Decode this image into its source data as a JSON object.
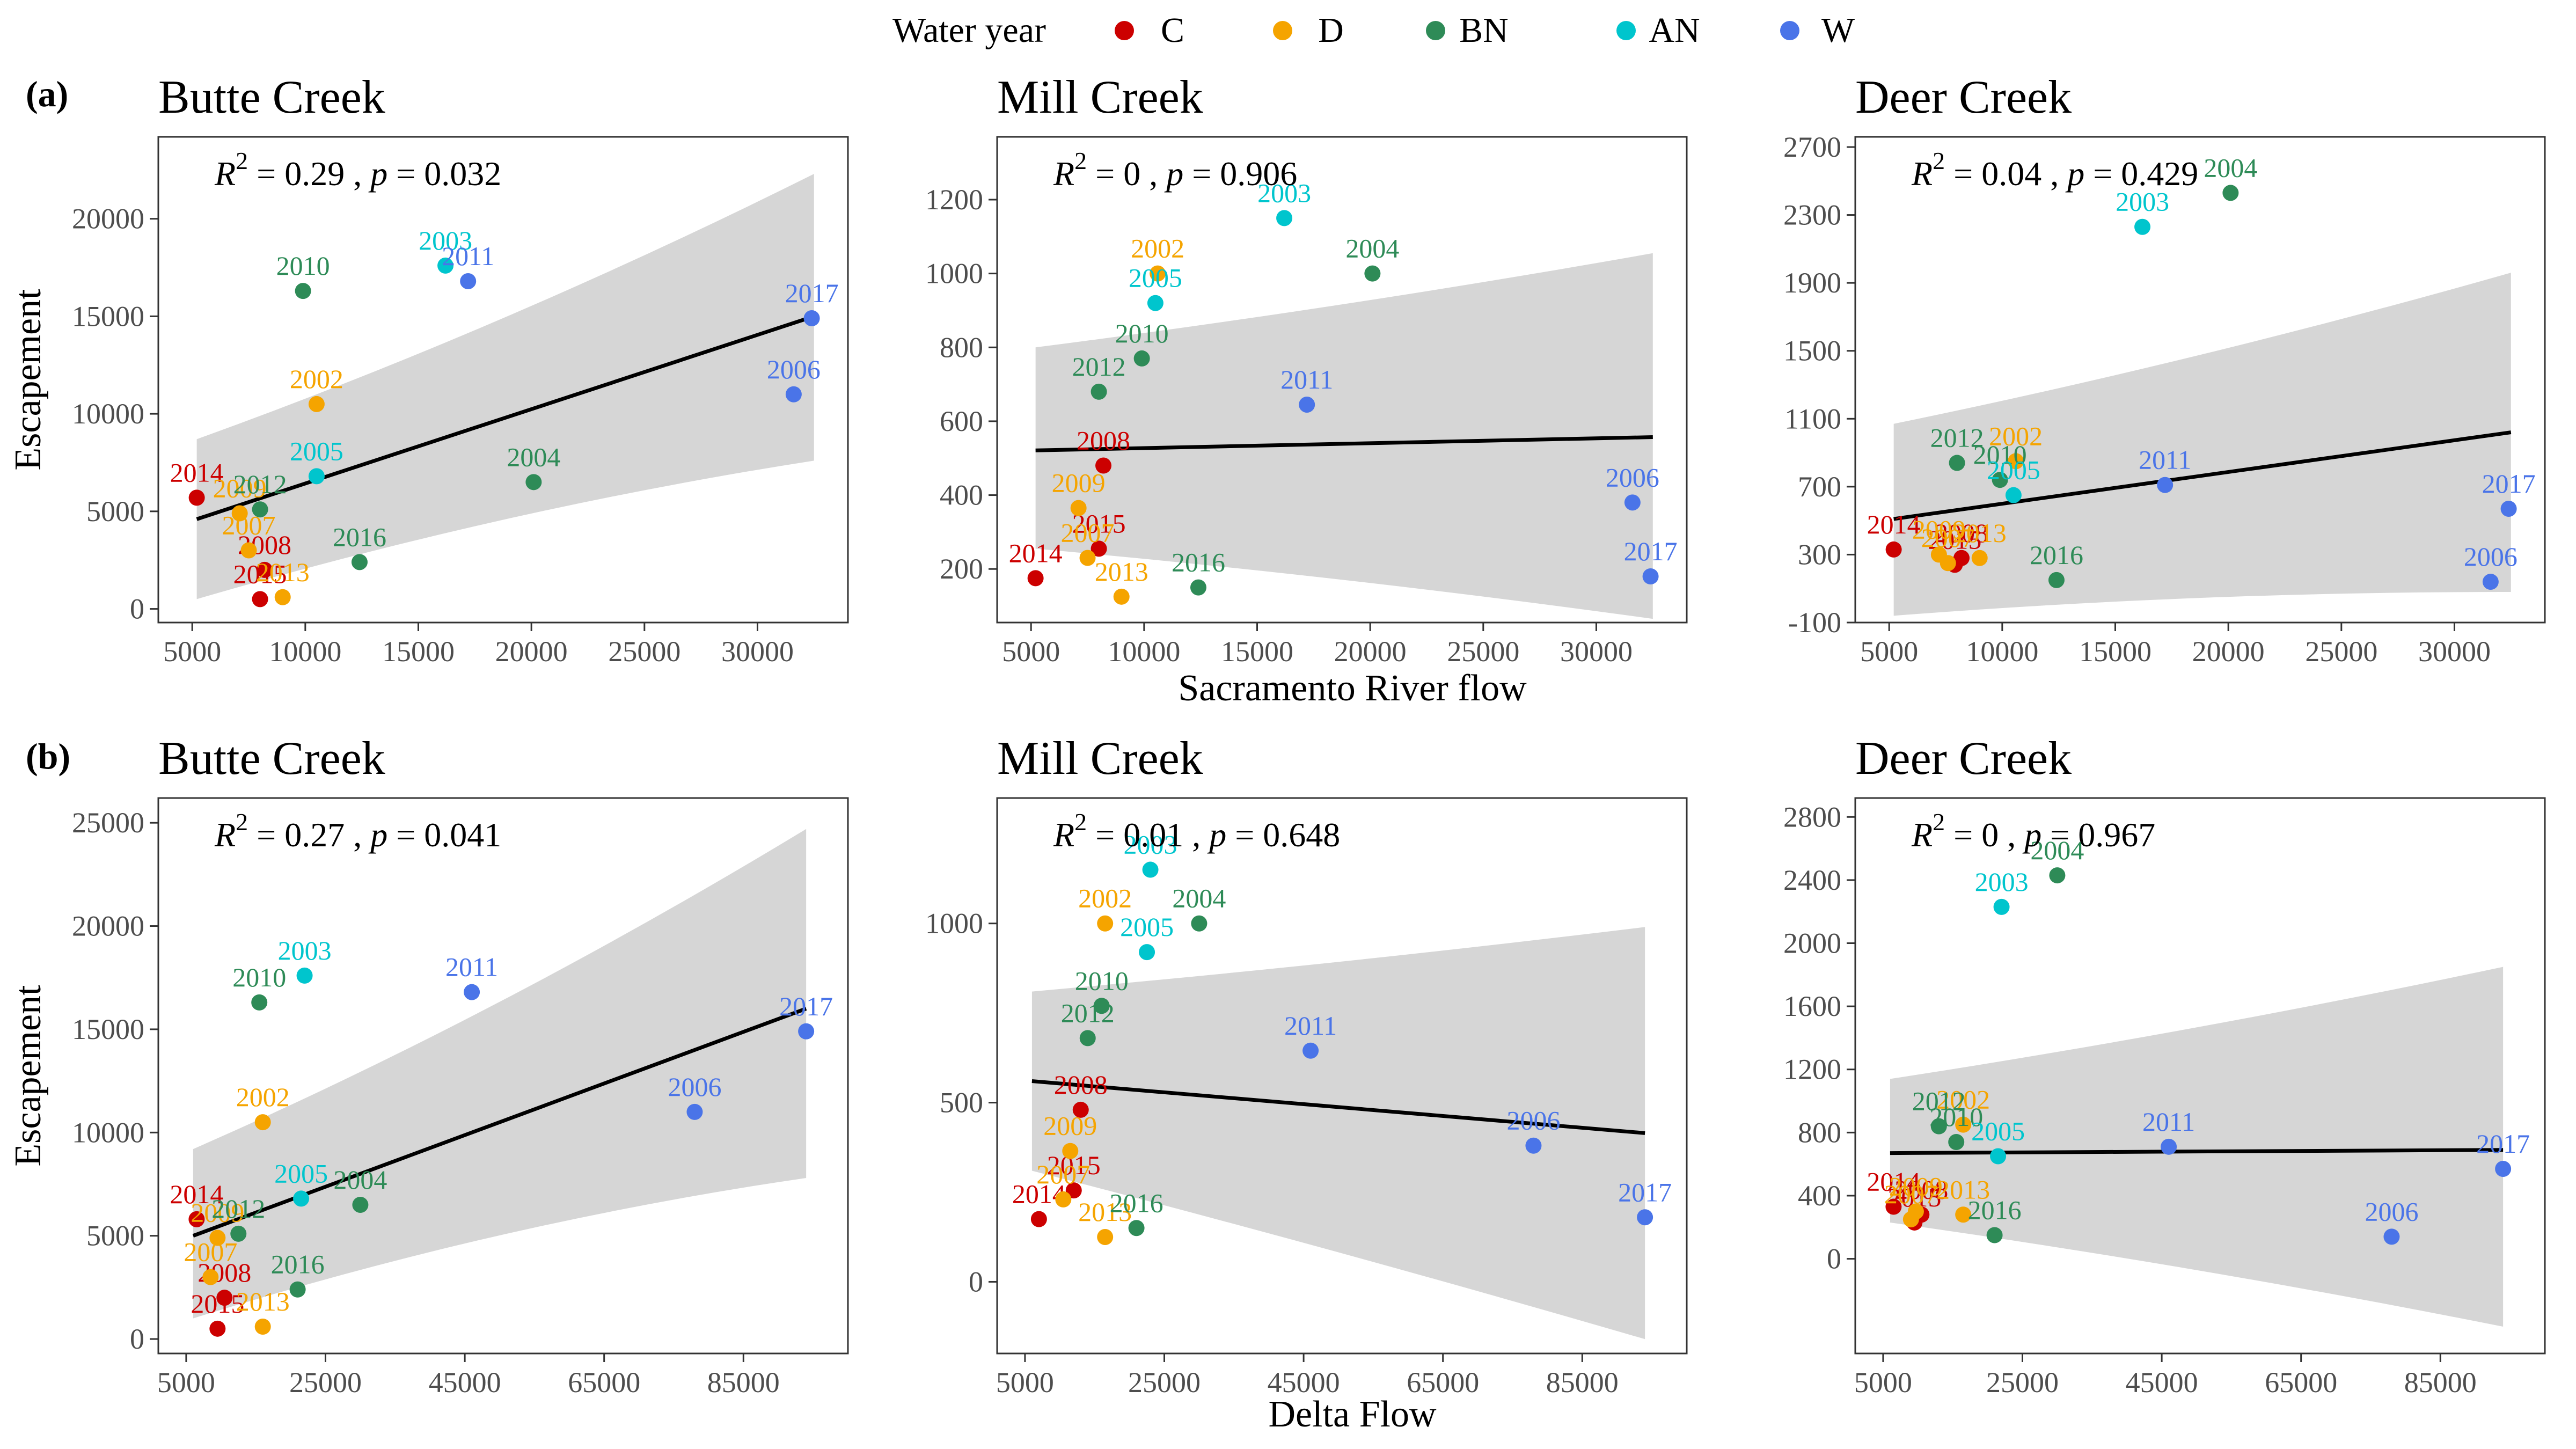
{
  "legend": {
    "title": "Water year",
    "placement": "top-center",
    "items": [
      {
        "code": "C",
        "label": "C",
        "color": "#cc0000"
      },
      {
        "code": "D",
        "label": "D",
        "color": "#f5a400"
      },
      {
        "code": "BN",
        "label": "BN",
        "color": "#2e8b57"
      },
      {
        "code": "AN",
        "label": "AN",
        "color": "#00c5cd"
      },
      {
        "code": "W",
        "label": "W",
        "color": "#4a74e8"
      }
    ]
  },
  "rows": [
    {
      "tag": "(a)",
      "xlabel": "Sacramento River flow"
    },
    {
      "tag": "(b)",
      "xlabel": "Delta Flow"
    }
  ],
  "chart_data": [
    {
      "type": "scatter",
      "row": 0,
      "col": 0,
      "title": "Butte Creek",
      "ylabel": "Escapement",
      "xlabel": "",
      "stats": {
        "r2": "0.29",
        "p": "0.032"
      },
      "xlim": [
        3500,
        34000
      ],
      "ylim": [
        -700,
        24200
      ],
      "xticks": [
        5000,
        10000,
        15000,
        20000,
        25000,
        30000
      ],
      "yticks": [
        0,
        5000,
        10000,
        15000,
        20000
      ],
      "xtick_labels": [
        "5000",
        "10000",
        "15000",
        "20000",
        "25000",
        "30000"
      ],
      "ytick_labels": [
        "0",
        "5000",
        "10000",
        "15000",
        "20000"
      ],
      "grid": false,
      "fit": {
        "x": [
          5200,
          32500
        ],
        "y": [
          4600,
          15000
        ],
        "lower": [
          500,
          7600
        ],
        "upper": [
          8700,
          22300
        ]
      },
      "points": [
        {
          "year": "2014",
          "x": 5200,
          "y": 5700,
          "wy": "C"
        },
        {
          "year": "2015",
          "x": 8000,
          "y": 500,
          "wy": "C"
        },
        {
          "year": "2008",
          "x": 8200,
          "y": 2000,
          "wy": "C"
        },
        {
          "year": "2013",
          "x": 9000,
          "y": 600,
          "wy": "D"
        },
        {
          "year": "2007",
          "x": 7500,
          "y": 3000,
          "wy": "D"
        },
        {
          "year": "2009",
          "x": 7100,
          "y": 4900,
          "wy": "D"
        },
        {
          "year": "2002",
          "x": 10500,
          "y": 10500,
          "wy": "D"
        },
        {
          "year": "2012",
          "x": 8000,
          "y": 5100,
          "wy": "BN"
        },
        {
          "year": "2016",
          "x": 12400,
          "y": 2400,
          "wy": "BN"
        },
        {
          "year": "2010",
          "x": 9900,
          "y": 16300,
          "wy": "BN"
        },
        {
          "year": "2004",
          "x": 20100,
          "y": 6500,
          "wy": "BN"
        },
        {
          "year": "2003",
          "x": 16200,
          "y": 17600,
          "wy": "AN"
        },
        {
          "year": "2005",
          "x": 10500,
          "y": 6800,
          "wy": "AN"
        },
        {
          "year": "2011",
          "x": 17200,
          "y": 16800,
          "wy": "W"
        },
        {
          "year": "2006",
          "x": 31600,
          "y": 11000,
          "wy": "W"
        },
        {
          "year": "2017",
          "x": 32400,
          "y": 14900,
          "wy": "W"
        }
      ]
    },
    {
      "type": "scatter",
      "row": 0,
      "col": 1,
      "title": "Mill Creek",
      "ylabel": "",
      "xlabel": "Sacramento River flow",
      "stats": {
        "r2": "0",
        "p": "0.906"
      },
      "xlim": [
        3500,
        34000
      ],
      "ylim": [
        55,
        1370
      ],
      "xticks": [
        5000,
        10000,
        15000,
        20000,
        25000,
        30000
      ],
      "yticks": [
        200,
        400,
        600,
        800,
        1000,
        1200
      ],
      "xtick_labels": [
        "5000",
        "10000",
        "15000",
        "20000",
        "25000",
        "30000"
      ],
      "ytick_labels": [
        "200",
        "400",
        "600",
        "800",
        "1000",
        "1200"
      ],
      "grid": false,
      "fit": {
        "x": [
          5200,
          32500
        ],
        "y": [
          521,
          557
        ],
        "lower": [
          255,
          65
        ],
        "upper": [
          800,
          1055
        ]
      },
      "points": [
        {
          "year": "2014",
          "x": 5200,
          "y": 175,
          "wy": "C"
        },
        {
          "year": "2015",
          "x": 8000,
          "y": 255,
          "wy": "C"
        },
        {
          "year": "2008",
          "x": 8200,
          "y": 480,
          "wy": "C"
        },
        {
          "year": "2013",
          "x": 9000,
          "y": 125,
          "wy": "D"
        },
        {
          "year": "2009",
          "x": 7100,
          "y": 365,
          "wy": "D"
        },
        {
          "year": "2007",
          "x": 7500,
          "y": 230,
          "wy": "D"
        },
        {
          "year": "2002",
          "x": 10600,
          "y": 1000,
          "wy": "D"
        },
        {
          "year": "2012",
          "x": 8000,
          "y": 680,
          "wy": "BN"
        },
        {
          "year": "2010",
          "x": 9900,
          "y": 770,
          "wy": "BN"
        },
        {
          "year": "2016",
          "x": 12400,
          "y": 150,
          "wy": "BN"
        },
        {
          "year": "2004",
          "x": 20100,
          "y": 1000,
          "wy": "BN"
        },
        {
          "year": "2003",
          "x": 16200,
          "y": 1150,
          "wy": "AN"
        },
        {
          "year": "2005",
          "x": 10500,
          "y": 920,
          "wy": "AN"
        },
        {
          "year": "2011",
          "x": 17200,
          "y": 645,
          "wy": "W"
        },
        {
          "year": "2006",
          "x": 31600,
          "y": 380,
          "wy": "W"
        },
        {
          "year": "2017",
          "x": 32400,
          "y": 180,
          "wy": "W"
        }
      ]
    },
    {
      "type": "scatter",
      "row": 0,
      "col": 2,
      "title": "Deer Creek",
      "ylabel": "",
      "xlabel": "",
      "stats": {
        "r2": "0.04",
        "p": "0.429"
      },
      "xlim": [
        3500,
        34000
      ],
      "ylim": [
        -100,
        2760
      ],
      "xticks": [
        5000,
        10000,
        15000,
        20000,
        25000,
        30000
      ],
      "yticks": [
        -100,
        300,
        700,
        1100,
        1500,
        1900,
        2300,
        2700
      ],
      "xtick_labels": [
        "5000",
        "10000",
        "15000",
        "20000",
        "25000",
        "30000"
      ],
      "ytick_labels": [
        "-100",
        "300",
        "700",
        "1100",
        "1500",
        "1900",
        "2300",
        "2700"
      ],
      "grid": false,
      "fit": {
        "x": [
          5200,
          32500
        ],
        "y": [
          510,
          1020
        ],
        "lower": [
          -60,
          80
        ],
        "upper": [
          1070,
          1960
        ]
      },
      "points": [
        {
          "year": "2014",
          "x": 5200,
          "y": 330,
          "wy": "C"
        },
        {
          "year": "2015",
          "x": 7900,
          "y": 240,
          "wy": "C"
        },
        {
          "year": "2008",
          "x": 8200,
          "y": 280,
          "wy": "C"
        },
        {
          "year": "2013",
          "x": 9000,
          "y": 280,
          "wy": "D"
        },
        {
          "year": "2007",
          "x": 7600,
          "y": 250,
          "wy": "D"
        },
        {
          "year": "2009",
          "x": 7200,
          "y": 300,
          "wy": "D"
        },
        {
          "year": "2002",
          "x": 10600,
          "y": 850,
          "wy": "D"
        },
        {
          "year": "2012",
          "x": 8000,
          "y": 840,
          "wy": "BN"
        },
        {
          "year": "2010",
          "x": 9900,
          "y": 740,
          "wy": "BN"
        },
        {
          "year": "2016",
          "x": 12400,
          "y": 150,
          "wy": "BN"
        },
        {
          "year": "2004",
          "x": 20100,
          "y": 2430,
          "wy": "BN"
        },
        {
          "year": "2003",
          "x": 16200,
          "y": 2230,
          "wy": "AN"
        },
        {
          "year": "2005",
          "x": 10500,
          "y": 650,
          "wy": "AN"
        },
        {
          "year": "2011",
          "x": 17200,
          "y": 710,
          "wy": "W"
        },
        {
          "year": "2006",
          "x": 31600,
          "y": 140,
          "wy": "W"
        },
        {
          "year": "2017",
          "x": 32400,
          "y": 570,
          "wy": "W"
        }
      ]
    },
    {
      "type": "scatter",
      "row": 1,
      "col": 0,
      "title": "Butte Creek",
      "ylabel": "Escapement",
      "xlabel": "",
      "stats": {
        "r2": "0.27",
        "p": "0.041"
      },
      "xlim": [
        1000,
        100000
      ],
      "ylim": [
        -700,
        26200
      ],
      "xticks": [
        5000,
        25000,
        45000,
        65000,
        85000
      ],
      "yticks": [
        0,
        5000,
        10000,
        15000,
        20000,
        25000
      ],
      "xtick_labels": [
        "5000",
        "25000",
        "45000",
        "65000",
        "85000"
      ],
      "ytick_labels": [
        "0",
        "5000",
        "10000",
        "15000",
        "20000",
        "25000"
      ],
      "grid": false,
      "fit": {
        "x": [
          6000,
          94000
        ],
        "y": [
          5000,
          16000
        ],
        "lower": [
          1000,
          7800
        ],
        "upper": [
          9200,
          24700
        ]
      },
      "points": [
        {
          "year": "2014",
          "x": 6500,
          "y": 5800,
          "wy": "C"
        },
        {
          "year": "2015",
          "x": 9500,
          "y": 500,
          "wy": "C"
        },
        {
          "year": "2008",
          "x": 10500,
          "y": 2000,
          "wy": "C"
        },
        {
          "year": "2013",
          "x": 16000,
          "y": 600,
          "wy": "D"
        },
        {
          "year": "2007",
          "x": 8500,
          "y": 3000,
          "wy": "D"
        },
        {
          "year": "2009",
          "x": 9500,
          "y": 4900,
          "wy": "D"
        },
        {
          "year": "2002",
          "x": 16000,
          "y": 10500,
          "wy": "D"
        },
        {
          "year": "2012",
          "x": 12500,
          "y": 5100,
          "wy": "BN"
        },
        {
          "year": "2016",
          "x": 21000,
          "y": 2400,
          "wy": "BN"
        },
        {
          "year": "2010",
          "x": 15500,
          "y": 16300,
          "wy": "BN"
        },
        {
          "year": "2004",
          "x": 30000,
          "y": 6500,
          "wy": "BN"
        },
        {
          "year": "2003",
          "x": 22000,
          "y": 17600,
          "wy": "AN"
        },
        {
          "year": "2005",
          "x": 21500,
          "y": 6800,
          "wy": "AN"
        },
        {
          "year": "2011",
          "x": 46000,
          "y": 16800,
          "wy": "W"
        },
        {
          "year": "2006",
          "x": 78000,
          "y": 11000,
          "wy": "W"
        },
        {
          "year": "2017",
          "x": 94000,
          "y": 14900,
          "wy": "W"
        }
      ]
    },
    {
      "type": "scatter",
      "row": 1,
      "col": 1,
      "title": "Mill Creek",
      "ylabel": "",
      "xlabel": "Delta Flow",
      "stats": {
        "r2": "0.01",
        "p": "0.648"
      },
      "xlim": [
        1000,
        100000
      ],
      "ylim": [
        -200,
        1350
      ],
      "xticks": [
        5000,
        25000,
        45000,
        65000,
        85000
      ],
      "yticks": [
        0,
        500,
        1000
      ],
      "xtick_labels": [
        "5000",
        "25000",
        "45000",
        "65000",
        "85000"
      ],
      "ytick_labels": [
        "0",
        "500",
        "1000"
      ],
      "grid": false,
      "fit": {
        "x": [
          6000,
          94000
        ],
        "y": [
          560,
          415
        ],
        "lower": [
          310,
          -160
        ],
        "upper": [
          810,
          990
        ]
      },
      "points": [
        {
          "year": "2014",
          "x": 7000,
          "y": 175,
          "wy": "C"
        },
        {
          "year": "2015",
          "x": 12000,
          "y": 255,
          "wy": "C"
        },
        {
          "year": "2008",
          "x": 13000,
          "y": 480,
          "wy": "C"
        },
        {
          "year": "2013",
          "x": 16500,
          "y": 125,
          "wy": "D"
        },
        {
          "year": "2009",
          "x": 11500,
          "y": 365,
          "wy": "D"
        },
        {
          "year": "2007",
          "x": 10500,
          "y": 230,
          "wy": "D"
        },
        {
          "year": "2002",
          "x": 16500,
          "y": 1000,
          "wy": "D"
        },
        {
          "year": "2012",
          "x": 14000,
          "y": 680,
          "wy": "BN"
        },
        {
          "year": "2010",
          "x": 16000,
          "y": 770,
          "wy": "BN"
        },
        {
          "year": "2016",
          "x": 21000,
          "y": 150,
          "wy": "BN"
        },
        {
          "year": "2004",
          "x": 30000,
          "y": 1000,
          "wy": "BN"
        },
        {
          "year": "2003",
          "x": 23000,
          "y": 1150,
          "wy": "AN"
        },
        {
          "year": "2005",
          "x": 22500,
          "y": 920,
          "wy": "AN"
        },
        {
          "year": "2011",
          "x": 46000,
          "y": 645,
          "wy": "W"
        },
        {
          "year": "2006",
          "x": 78000,
          "y": 380,
          "wy": "W"
        },
        {
          "year": "2017",
          "x": 94000,
          "y": 180,
          "wy": "W"
        }
      ]
    },
    {
      "type": "scatter",
      "row": 1,
      "col": 2,
      "title": "Deer Creek",
      "ylabel": "",
      "xlabel": "",
      "stats": {
        "r2": "0",
        "p": "0.967"
      },
      "xlim": [
        1000,
        100000
      ],
      "ylim": [
        -600,
        2920
      ],
      "xticks": [
        5000,
        25000,
        45000,
        65000,
        85000
      ],
      "yticks": [
        0,
        400,
        800,
        1200,
        1600,
        2000,
        2400,
        2800
      ],
      "xtick_labels": [
        "5000",
        "25000",
        "45000",
        "65000",
        "85000"
      ],
      "ytick_labels": [
        "0",
        "400",
        "800",
        "1200",
        "1600",
        "2000",
        "2400",
        "2800"
      ],
      "grid": false,
      "fit": {
        "x": [
          6000,
          94000
        ],
        "y": [
          670,
          690
        ],
        "lower": [
          230,
          -430
        ],
        "upper": [
          1140,
          1850
        ]
      },
      "points": [
        {
          "year": "2014",
          "x": 6500,
          "y": 330,
          "wy": "C"
        },
        {
          "year": "2015",
          "x": 9500,
          "y": 230,
          "wy": "C"
        },
        {
          "year": "2008",
          "x": 10500,
          "y": 280,
          "wy": "C"
        },
        {
          "year": "2013",
          "x": 16500,
          "y": 280,
          "wy": "D"
        },
        {
          "year": "2007",
          "x": 9000,
          "y": 250,
          "wy": "D"
        },
        {
          "year": "2009",
          "x": 9700,
          "y": 300,
          "wy": "D"
        },
        {
          "year": "2002",
          "x": 16500,
          "y": 850,
          "wy": "D"
        },
        {
          "year": "2012",
          "x": 13000,
          "y": 840,
          "wy": "BN"
        },
        {
          "year": "2010",
          "x": 15500,
          "y": 740,
          "wy": "BN"
        },
        {
          "year": "2016",
          "x": 21000,
          "y": 150,
          "wy": "BN"
        },
        {
          "year": "2004",
          "x": 30000,
          "y": 2430,
          "wy": "BN"
        },
        {
          "year": "2003",
          "x": 22000,
          "y": 2230,
          "wy": "AN"
        },
        {
          "year": "2005",
          "x": 21500,
          "y": 650,
          "wy": "AN"
        },
        {
          "year": "2011",
          "x": 46000,
          "y": 710,
          "wy": "W"
        },
        {
          "year": "2006",
          "x": 78000,
          "y": 140,
          "wy": "W"
        },
        {
          "year": "2017",
          "x": 94000,
          "y": 570,
          "wy": "W"
        }
      ]
    }
  ]
}
